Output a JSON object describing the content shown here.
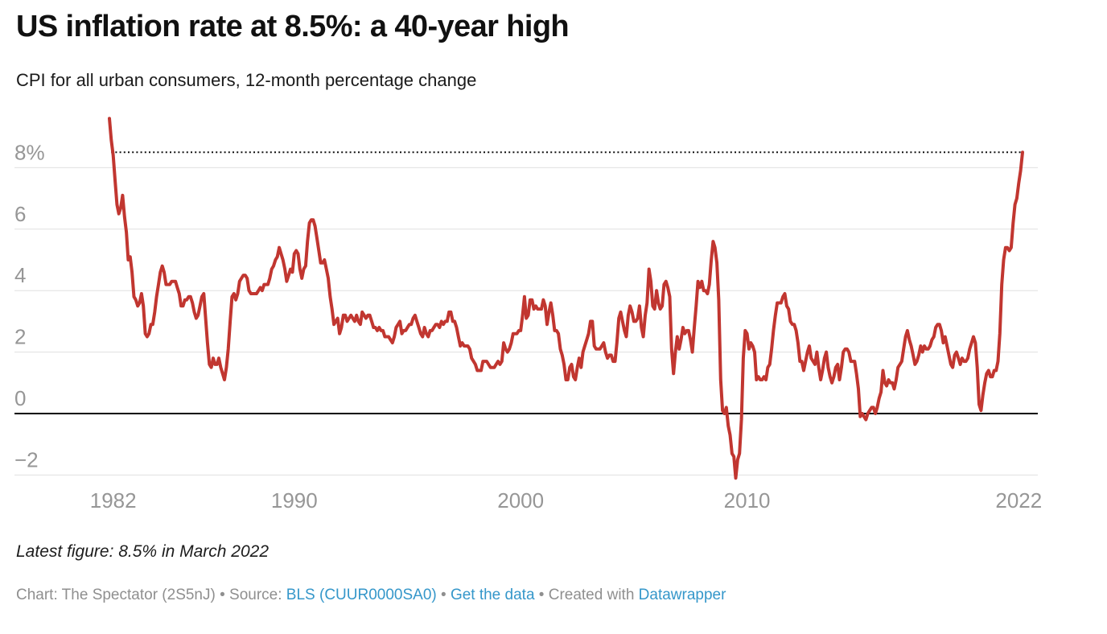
{
  "header": {
    "title": "US inflation rate at 8.5%: a 40-year high",
    "subtitle": "CPI for all urban consumers, 12-month percentage change"
  },
  "chart_data": {
    "type": "line",
    "title": "US inflation rate at 8.5%: a 40-year high",
    "series_name": "CPI-U 12-month percentage change",
    "frequency": "monthly",
    "start": "1981-11",
    "end": "2022-03",
    "xlabel": "",
    "ylabel": "",
    "ylim": [
      -2.6,
      9.8
    ],
    "grid": true,
    "legend": "none",
    "y_ticks": [
      {
        "label": "8%",
        "value": 8
      },
      {
        "label": "6",
        "value": 6
      },
      {
        "label": "4",
        "value": 4
      },
      {
        "label": "2",
        "value": 2
      },
      {
        "label": "0",
        "value": 0
      },
      {
        "label": "−2",
        "value": -2
      }
    ],
    "x_ticks": [
      1982,
      1990,
      2000,
      2010,
      2022
    ],
    "annotation": {
      "type": "dotted-threshold",
      "value": 8.5,
      "meaning": "latest value 8.5%"
    },
    "latest": {
      "value": 8.5,
      "label": "8.5% in March 2022"
    },
    "colors": {
      "line": "#c13630",
      "grid": "#e0e0e0",
      "zero_line": "#000000",
      "dotted": "#111111",
      "tick_label": "#969696"
    },
    "values": [
      9.6,
      8.9,
      8.4,
      7.6,
      6.8,
      6.5,
      6.7,
      7.1,
      6.4,
      5.9,
      5.0,
      5.1,
      4.6,
      3.8,
      3.7,
      3.5,
      3.6,
      3.9,
      3.5,
      2.6,
      2.5,
      2.6,
      2.9,
      2.9,
      3.3,
      3.8,
      4.2,
      4.6,
      4.8,
      4.6,
      4.2,
      4.2,
      4.2,
      4.3,
      4.3,
      4.3,
      4.1,
      3.9,
      3.5,
      3.5,
      3.7,
      3.7,
      3.8,
      3.8,
      3.6,
      3.3,
      3.1,
      3.2,
      3.5,
      3.8,
      3.9,
      3.1,
      2.3,
      1.6,
      1.5,
      1.8,
      1.6,
      1.6,
      1.8,
      1.5,
      1.3,
      1.1,
      1.5,
      2.1,
      3.0,
      3.8,
      3.9,
      3.7,
      3.9,
      4.3,
      4.4,
      4.5,
      4.5,
      4.4,
      4.0,
      3.9,
      3.9,
      3.9,
      3.9,
      4.0,
      4.1,
      4.0,
      4.2,
      4.2,
      4.2,
      4.4,
      4.7,
      4.8,
      5.0,
      5.1,
      5.4,
      5.2,
      5.0,
      4.7,
      4.3,
      4.5,
      4.7,
      4.6,
      5.2,
      5.3,
      5.2,
      4.7,
      4.4,
      4.7,
      4.8,
      5.6,
      6.2,
      6.3,
      6.3,
      6.1,
      5.7,
      5.3,
      4.9,
      4.9,
      5.0,
      4.7,
      4.4,
      3.8,
      3.4,
      2.9,
      3.0,
      3.1,
      2.6,
      2.8,
      3.2,
      3.2,
      3.0,
      3.1,
      3.2,
      3.1,
      3.0,
      3.2,
      3.0,
      2.9,
      3.3,
      3.2,
      3.1,
      3.2,
      3.2,
      3.0,
      2.8,
      2.8,
      2.7,
      2.8,
      2.7,
      2.7,
      2.5,
      2.5,
      2.5,
      2.4,
      2.3,
      2.5,
      2.8,
      2.9,
      3.0,
      2.6,
      2.7,
      2.7,
      2.8,
      2.9,
      2.9,
      3.1,
      3.2,
      3.0,
      2.8,
      2.6,
      2.5,
      2.8,
      2.6,
      2.5,
      2.7,
      2.7,
      2.8,
      2.9,
      2.9,
      2.8,
      3.0,
      2.9,
      3.0,
      3.0,
      3.3,
      3.3,
      3.0,
      3.0,
      2.8,
      2.5,
      2.2,
      2.3,
      2.2,
      2.2,
      2.2,
      2.1,
      1.8,
      1.7,
      1.6,
      1.4,
      1.4,
      1.4,
      1.7,
      1.7,
      1.7,
      1.6,
      1.5,
      1.5,
      1.5,
      1.6,
      1.7,
      1.6,
      1.7,
      2.3,
      2.1,
      2.0,
      2.1,
      2.3,
      2.6,
      2.6,
      2.6,
      2.7,
      2.7,
      3.2,
      3.8,
      3.1,
      3.2,
      3.7,
      3.7,
      3.4,
      3.5,
      3.4,
      3.4,
      3.4,
      3.7,
      3.5,
      2.9,
      3.3,
      3.6,
      3.2,
      2.7,
      2.7,
      2.6,
      2.1,
      1.9,
      1.6,
      1.1,
      1.1,
      1.5,
      1.6,
      1.2,
      1.1,
      1.5,
      1.8,
      1.5,
      2.0,
      2.2,
      2.4,
      2.6,
      3.0,
      3.0,
      2.2,
      2.1,
      2.1,
      2.1,
      2.2,
      2.3,
      2.0,
      1.8,
      1.9,
      1.9,
      1.7,
      1.7,
      2.3,
      3.1,
      3.3,
      3.0,
      2.7,
      2.5,
      3.2,
      3.5,
      3.3,
      3.0,
      3.0,
      3.1,
      3.5,
      2.8,
      2.5,
      3.2,
      3.6,
      4.7,
      4.3,
      3.5,
      3.4,
      4.0,
      3.6,
      3.4,
      3.5,
      4.2,
      4.3,
      4.1,
      3.8,
      2.1,
      1.3,
      2.0,
      2.5,
      2.1,
      2.4,
      2.8,
      2.6,
      2.7,
      2.7,
      2.4,
      2.0,
      2.8,
      3.5,
      4.3,
      4.1,
      4.3,
      4.0,
      4.0,
      3.9,
      4.2,
      5.0,
      5.6,
      5.4,
      4.9,
      3.7,
      1.1,
      0.1,
      0.0,
      0.2,
      -0.4,
      -0.7,
      -1.3,
      -1.4,
      -2.1,
      -1.5,
      -1.3,
      -0.2,
      1.8,
      2.7,
      2.6,
      2.1,
      2.3,
      2.2,
      2.0,
      1.1,
      1.2,
      1.1,
      1.1,
      1.2,
      1.1,
      1.5,
      1.6,
      2.1,
      2.7,
      3.2,
      3.6,
      3.6,
      3.6,
      3.8,
      3.9,
      3.5,
      3.4,
      3.0,
      2.9,
      2.9,
      2.7,
      2.3,
      1.7,
      1.7,
      1.4,
      1.7,
      2.0,
      2.2,
      1.8,
      1.7,
      1.6,
      2.0,
      1.5,
      1.1,
      1.4,
      1.8,
      2.0,
      1.5,
      1.2,
      1.0,
      1.2,
      1.5,
      1.6,
      1.1,
      1.5,
      2.0,
      2.1,
      2.1,
      2.0,
      1.7,
      1.7,
      1.7,
      1.3,
      0.8,
      -0.1,
      0.0,
      -0.1,
      -0.2,
      0.0,
      0.1,
      0.2,
      0.2,
      0.0,
      0.2,
      0.5,
      0.7,
      1.4,
      1.0,
      0.9,
      1.1,
      1.0,
      1.0,
      0.8,
      1.1,
      1.5,
      1.6,
      1.7,
      2.1,
      2.5,
      2.7,
      2.4,
      2.2,
      1.9,
      1.6,
      1.7,
      1.9,
      2.2,
      2.0,
      2.2,
      2.1,
      2.1,
      2.2,
      2.4,
      2.5,
      2.8,
      2.9,
      2.9,
      2.7,
      2.3,
      2.5,
      2.2,
      1.9,
      1.6,
      1.5,
      1.9,
      2.0,
      1.8,
      1.6,
      1.8,
      1.7,
      1.7,
      1.8,
      2.1,
      2.3,
      2.5,
      2.3,
      1.5,
      0.3,
      0.1,
      0.6,
      1.0,
      1.3,
      1.4,
      1.2,
      1.2,
      1.4,
      1.4,
      1.7,
      2.6,
      4.2,
      5.0,
      5.4,
      5.4,
      5.3,
      5.4,
      6.2,
      6.8,
      7.0,
      7.5,
      7.9,
      8.5
    ]
  },
  "footer": {
    "note": "Latest figure: 8.5% in March 2022",
    "credits": {
      "prefix": "Chart: The Spectator (2S5nJ) • Source: ",
      "source_link": "BLS (CUUR0000SA0)",
      "sep": " • ",
      "data_link": "Get the data",
      "created": " • Created with ",
      "tool_link": "Datawrapper"
    }
  }
}
